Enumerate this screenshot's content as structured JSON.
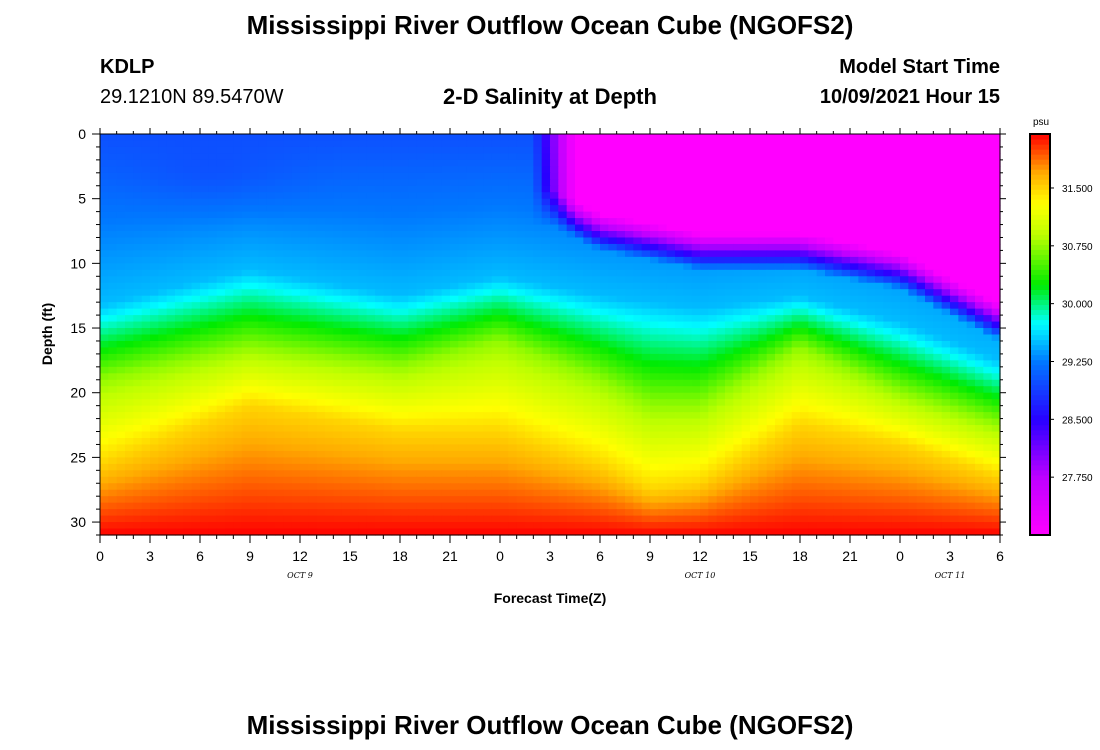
{
  "header": {
    "title": "Mississippi River Outflow Ocean Cube (NGOFS2)",
    "station_id": "KDLP",
    "station_coords": "29.1210N  89.5470W",
    "subtitle": "2-D Salinity at Depth",
    "model_label": "Model Start Time",
    "model_time": "10/09/2021 Hour 15"
  },
  "footer": {
    "title": "Mississippi River Outflow Ocean Cube (NGOFS2)"
  },
  "chart_data": {
    "type": "heatmap",
    "title": "2-D Salinity at Depth",
    "xlabel": "Forecast Time(Z)",
    "ylabel": "Depth (ft)",
    "x_tick_labels": [
      "0",
      "3",
      "6",
      "9",
      "12",
      "15",
      "18",
      "21",
      "0",
      "3",
      "6",
      "9",
      "12",
      "15",
      "18",
      "21",
      "0",
      "3",
      "6"
    ],
    "x_hours_from_start": [
      0,
      3,
      6,
      9,
      12,
      15,
      18,
      21,
      24,
      27,
      30,
      33,
      36,
      39,
      42,
      45,
      48,
      51,
      54
    ],
    "date_labels": [
      {
        "label": "OCT 9",
        "hour": 12
      },
      {
        "label": "OCT 10",
        "hour": 36
      },
      {
        "label": "OCT 11",
        "hour": 51
      }
    ],
    "ylim": [
      0,
      31
    ],
    "y_ticks": [
      0,
      5,
      10,
      15,
      20,
      25,
      30
    ],
    "y_inverted": true,
    "colorbar": {
      "unit": "psu",
      "range": [
        27.0,
        32.2
      ],
      "tick_values": [
        31.5,
        30.75,
        30.0,
        29.25,
        28.5,
        27.75
      ],
      "tick_labels": [
        "31.500",
        "30.750",
        "30.000",
        "29.250",
        "28.500",
        "27.750"
      ]
    },
    "isohalines_ft_by_hour": {
      "hours": [
        0,
        9,
        18,
        24,
        30,
        33,
        36,
        42,
        48,
        54
      ],
      "s29_5": [
        13.2,
        10.5,
        12.5,
        11.0,
        12.5,
        13.0,
        13.5,
        12.5,
        14.5,
        17.5
      ],
      "s30_75": [
        19.0,
        16.5,
        18.0,
        16.0,
        19.0,
        21.0,
        21.0,
        16.5,
        20.0,
        22.5
      ],
      "s31_5": [
        25.5,
        21.0,
        23.0,
        23.0,
        25.5,
        27.5,
        27.0,
        22.5,
        24.0,
        26.5
      ]
    },
    "fresh_layer_ft_by_hour": {
      "hours": [
        27,
        30,
        36,
        42,
        48,
        54
      ],
      "bottom_ft": [
        7.0,
        9.0,
        10.5,
        10.5,
        12.0,
        16.0
      ]
    }
  }
}
